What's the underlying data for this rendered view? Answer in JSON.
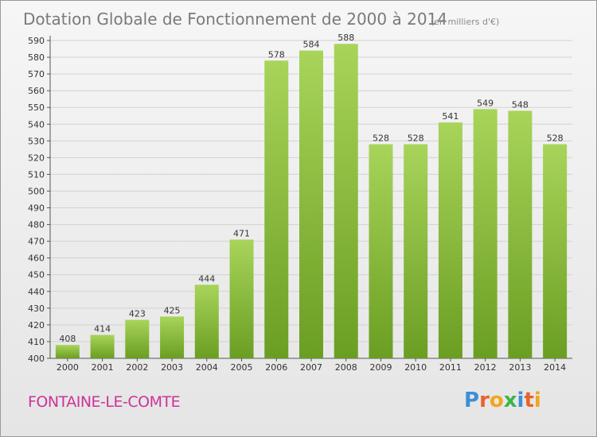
{
  "chart_data": {
    "type": "bar",
    "title": "Dotation Globale de Fonctionnement de 2000 à 2014",
    "subtitle": "(en milliers d'€)",
    "categories": [
      "2000",
      "2001",
      "2002",
      "2003",
      "2004",
      "2005",
      "2006",
      "2007",
      "2008",
      "2009",
      "2010",
      "2011",
      "2012",
      "2013",
      "2014"
    ],
    "values": [
      408,
      414,
      423,
      425,
      444,
      471,
      578,
      584,
      588,
      528,
      528,
      541,
      549,
      548,
      528
    ],
    "ylim": [
      400,
      590
    ],
    "ytick_step": 10,
    "grid": true,
    "bar_color_top": "#a8d45a",
    "bar_color_bottom": "#6a9e22"
  },
  "footer": {
    "commune": "FONTAINE-LE-COMTE",
    "logo_letters": [
      "P",
      "r",
      "o",
      "x",
      "i",
      "t",
      "i"
    ],
    "logo_colors": [
      "#3b8fd6",
      "#e8632a",
      "#f2a51f",
      "#3bb64a",
      "#3b8fd6",
      "#e8632a",
      "#f2a51f"
    ]
  }
}
